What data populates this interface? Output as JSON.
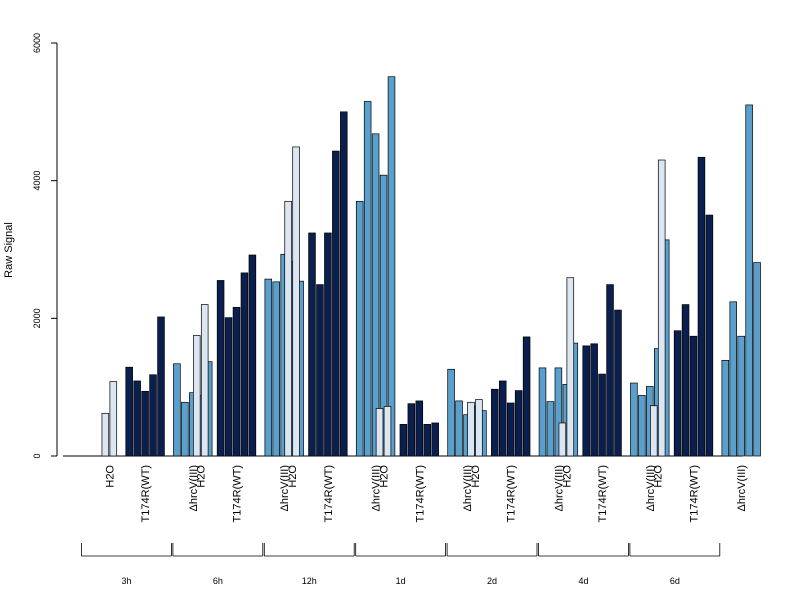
{
  "chart_data": {
    "type": "bar",
    "ylabel": "Raw Signal",
    "ylim": [
      0,
      6000
    ],
    "yticks": [
      0,
      2000,
      4000,
      6000
    ],
    "grid": false,
    "legend": "none",
    "colors": {
      "H2O": "#dbe6f2",
      "T174R(WT)": "#0b1f4e",
      "ΔhrcV(III)": "#5aa0cd"
    },
    "group_labels": [
      "H2O",
      "T174R(WT)",
      "ΔhrcV(III)"
    ],
    "timepoints": [
      {
        "label": "3h",
        "groups": [
          {
            "name": "H2O",
            "values": [
              0,
              620,
              1080
            ]
          },
          {
            "name": "T174R(WT)",
            "values": [
              1290,
              1090,
              940,
              1180,
              2020
            ]
          },
          {
            "name": "ΔhrcV(III)",
            "values": [
              1340,
              780,
              920,
              880,
              1370
            ]
          }
        ]
      },
      {
        "label": "6h",
        "groups": [
          {
            "name": "H2O",
            "values": [
              0,
              1750,
              2200
            ]
          },
          {
            "name": "T174R(WT)",
            "values": [
              2550,
              2010,
              2160,
              2660,
              2920
            ]
          },
          {
            "name": "ΔhrcV(III)",
            "values": [
              2570,
              2530,
              2930,
              2820,
              2540
            ]
          }
        ]
      },
      {
        "label": "12h",
        "groups": [
          {
            "name": "H2O",
            "values": [
              0,
              3700,
              4490
            ]
          },
          {
            "name": "T174R(WT)",
            "values": [
              3240,
              2490,
              3240,
              4430,
              5000
            ]
          },
          {
            "name": "ΔhrcV(III)",
            "values": [
              3700,
              5150,
              4680,
              4080,
              5510
            ]
          }
        ]
      },
      {
        "label": "1d",
        "groups": [
          {
            "name": "H2O",
            "values": [
              0,
              690,
              720
            ]
          },
          {
            "name": "T174R(WT)",
            "values": [
              460,
              760,
              800,
              460,
              480
            ]
          },
          {
            "name": "ΔhrcV(III)",
            "values": [
              1260,
              800,
              600,
              720,
              660
            ]
          }
        ]
      },
      {
        "label": "2d",
        "groups": [
          {
            "name": "H2O",
            "values": [
              0,
              780,
              820
            ]
          },
          {
            "name": "T174R(WT)",
            "values": [
              970,
              1090,
              770,
              950,
              1730
            ]
          },
          {
            "name": "ΔhrcV(III)",
            "values": [
              1280,
              790,
              1280,
              1040,
              1640
            ]
          }
        ]
      },
      {
        "label": "4d",
        "groups": [
          {
            "name": "H2O",
            "values": [
              0,
              480,
              2590
            ]
          },
          {
            "name": "T174R(WT)",
            "values": [
              1600,
              1630,
              1190,
              2490,
              2120
            ]
          },
          {
            "name": "ΔhrcV(III)",
            "values": [
              1060,
              880,
              1010,
              1560,
              3140
            ]
          }
        ]
      },
      {
        "label": "6d",
        "groups": [
          {
            "name": "H2O",
            "values": [
              0,
              730,
              4300
            ]
          },
          {
            "name": "T174R(WT)",
            "values": [
              1820,
              2200,
              1740,
              4340,
              3500
            ]
          },
          {
            "name": "ΔhrcV(III)",
            "values": [
              1390,
              2240,
              1740,
              5100,
              2810
            ]
          }
        ]
      }
    ]
  }
}
